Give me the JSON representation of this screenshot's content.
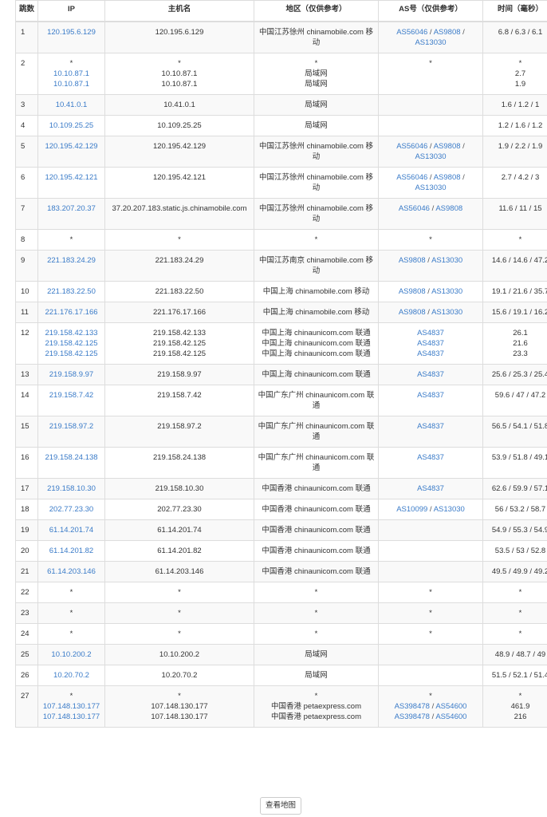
{
  "headers": {
    "hop": "跳数",
    "ip": "IP",
    "host": "主机名",
    "region": "地区（仅供参考）",
    "as": "AS号（仅供参考）",
    "time": "时间（毫秒）"
  },
  "colors": {
    "link": "#3a7bc8",
    "border": "#dddddd",
    "stripe": "#f9f9f9"
  },
  "rows": [
    {
      "hop": "1",
      "ip": [
        "120.195.6.129"
      ],
      "host": [
        "120.195.6.129"
      ],
      "region": [
        "中国江苏徐州 chinamobile.com 移动"
      ],
      "as": [
        [
          "AS56046",
          "AS9808",
          "AS13030"
        ]
      ],
      "time": [
        "6.8 / 6.3 / 6.1"
      ]
    },
    {
      "hop": "2",
      "ip": [
        "*",
        "10.10.87.1",
        "10.10.87.1"
      ],
      "host": [
        "*",
        "10.10.87.1",
        "10.10.87.1"
      ],
      "region": [
        "*",
        "局域网",
        "局域网"
      ],
      "as": [
        [
          "*"
        ]
      ],
      "time": [
        "*",
        "2.7",
        "1.9"
      ]
    },
    {
      "hop": "3",
      "ip": [
        "10.41.0.1"
      ],
      "host": [
        "10.41.0.1"
      ],
      "region": [
        "局域网"
      ],
      "as": [],
      "time": [
        "1.6 / 1.2 / 1"
      ]
    },
    {
      "hop": "4",
      "ip": [
        "10.109.25.25"
      ],
      "host": [
        "10.109.25.25"
      ],
      "region": [
        "局域网"
      ],
      "as": [],
      "time": [
        "1.2 / 1.6 / 1.2"
      ]
    },
    {
      "hop": "5",
      "ip": [
        "120.195.42.129"
      ],
      "host": [
        "120.195.42.129"
      ],
      "region": [
        "中国江苏徐州 chinamobile.com 移动"
      ],
      "as": [
        [
          "AS56046",
          "AS9808",
          "AS13030"
        ]
      ],
      "time": [
        "1.9 / 2.2 / 1.9"
      ]
    },
    {
      "hop": "6",
      "ip": [
        "120.195.42.121"
      ],
      "host": [
        "120.195.42.121"
      ],
      "region": [
        "中国江苏徐州 chinamobile.com 移动"
      ],
      "as": [
        [
          "AS56046",
          "AS9808",
          "AS13030"
        ]
      ],
      "time": [
        "2.7 / 4.2 / 3"
      ]
    },
    {
      "hop": "7",
      "ip": [
        "183.207.20.37"
      ],
      "host": [
        "37.20.207.183.static.js.chinamobile.com"
      ],
      "region": [
        "中国江苏徐州 chinamobile.com 移动"
      ],
      "as": [
        [
          "AS56046",
          "AS9808"
        ]
      ],
      "time": [
        "11.6 / 11 / 15"
      ]
    },
    {
      "hop": "8",
      "ip": [
        "*"
      ],
      "host": [
        "*"
      ],
      "region": [
        "*"
      ],
      "as": [
        [
          "*"
        ]
      ],
      "time": [
        "*"
      ]
    },
    {
      "hop": "9",
      "ip": [
        "221.183.24.29"
      ],
      "host": [
        "221.183.24.29"
      ],
      "region": [
        "中国江苏南京 chinamobile.com 移动"
      ],
      "as": [
        [
          "AS9808",
          "AS13030"
        ]
      ],
      "time": [
        "14.6 / 14.6 / 47.2"
      ]
    },
    {
      "hop": "10",
      "ip": [
        "221.183.22.50"
      ],
      "host": [
        "221.183.22.50"
      ],
      "region": [
        "中国上海 chinamobile.com 移动"
      ],
      "as": [
        [
          "AS9808",
          "AS13030"
        ]
      ],
      "time": [
        "19.1 / 21.6 / 35.7"
      ]
    },
    {
      "hop": "11",
      "ip": [
        "221.176.17.166"
      ],
      "host": [
        "221.176.17.166"
      ],
      "region": [
        "中国上海 chinamobile.com 移动"
      ],
      "as": [
        [
          "AS9808",
          "AS13030"
        ]
      ],
      "time": [
        "15.6 / 19.1 / 16.2"
      ]
    },
    {
      "hop": "12",
      "ip": [
        "219.158.42.133",
        "219.158.42.125",
        "219.158.42.125"
      ],
      "host": [
        "219.158.42.133",
        "219.158.42.125",
        "219.158.42.125"
      ],
      "region": [
        "中国上海 chinaunicom.com 联通",
        "中国上海 chinaunicom.com 联通",
        "中国上海 chinaunicom.com 联通"
      ],
      "as": [
        [
          "AS4837"
        ],
        [
          "AS4837"
        ],
        [
          "AS4837"
        ]
      ],
      "time": [
        "26.1",
        "21.6",
        "23.3"
      ]
    },
    {
      "hop": "13",
      "ip": [
        "219.158.9.97"
      ],
      "host": [
        "219.158.9.97"
      ],
      "region": [
        "中国上海 chinaunicom.com 联通"
      ],
      "as": [
        [
          "AS4837"
        ]
      ],
      "time": [
        "25.6 / 25.3 / 25.4"
      ]
    },
    {
      "hop": "14",
      "ip": [
        "219.158.7.42"
      ],
      "host": [
        "219.158.7.42"
      ],
      "region": [
        "中国广东广州 chinaunicom.com 联通"
      ],
      "as": [
        [
          "AS4837"
        ]
      ],
      "time": [
        "59.6 / 47 / 47.2"
      ]
    },
    {
      "hop": "15",
      "ip": [
        "219.158.97.2"
      ],
      "host": [
        "219.158.97.2"
      ],
      "region": [
        "中国广东广州 chinaunicom.com 联通"
      ],
      "as": [
        [
          "AS4837"
        ]
      ],
      "time": [
        "56.5 / 54.1 / 51.8"
      ]
    },
    {
      "hop": "16",
      "ip": [
        "219.158.24.138"
      ],
      "host": [
        "219.158.24.138"
      ],
      "region": [
        "中国广东广州 chinaunicom.com 联通"
      ],
      "as": [
        [
          "AS4837"
        ]
      ],
      "time": [
        "53.9 / 51.8 / 49.1"
      ]
    },
    {
      "hop": "17",
      "ip": [
        "219.158.10.30"
      ],
      "host": [
        "219.158.10.30"
      ],
      "region": [
        "中国香港 chinaunicom.com 联通"
      ],
      "as": [
        [
          "AS4837"
        ]
      ],
      "time": [
        "62.6 / 59.9 / 57.1"
      ]
    },
    {
      "hop": "18",
      "ip": [
        "202.77.23.30"
      ],
      "host": [
        "202.77.23.30"
      ],
      "region": [
        "中国香港 chinaunicom.com 联通"
      ],
      "as": [
        [
          "AS10099",
          "AS13030"
        ]
      ],
      "time": [
        "56 / 53.2 / 58.7"
      ]
    },
    {
      "hop": "19",
      "ip": [
        "61.14.201.74"
      ],
      "host": [
        "61.14.201.74"
      ],
      "region": [
        "中国香港 chinaunicom.com 联通"
      ],
      "as": [],
      "time": [
        "54.9 / 55.3 / 54.9"
      ]
    },
    {
      "hop": "20",
      "ip": [
        "61.14.201.82"
      ],
      "host": [
        "61.14.201.82"
      ],
      "region": [
        "中国香港 chinaunicom.com 联通"
      ],
      "as": [],
      "time": [
        "53.5 / 53 / 52.8"
      ]
    },
    {
      "hop": "21",
      "ip": [
        "61.14.203.146"
      ],
      "host": [
        "61.14.203.146"
      ],
      "region": [
        "中国香港 chinaunicom.com 联通"
      ],
      "as": [],
      "time": [
        "49.5 / 49.9 / 49.2"
      ]
    },
    {
      "hop": "22",
      "ip": [
        "*"
      ],
      "host": [
        "*"
      ],
      "region": [
        "*"
      ],
      "as": [
        [
          "*"
        ]
      ],
      "time": [
        "*"
      ]
    },
    {
      "hop": "23",
      "ip": [
        "*"
      ],
      "host": [
        "*"
      ],
      "region": [
        "*"
      ],
      "as": [
        [
          "*"
        ]
      ],
      "time": [
        "*"
      ]
    },
    {
      "hop": "24",
      "ip": [
        "*"
      ],
      "host": [
        "*"
      ],
      "region": [
        "*"
      ],
      "as": [
        [
          "*"
        ]
      ],
      "time": [
        "*"
      ]
    },
    {
      "hop": "25",
      "ip": [
        "10.10.200.2"
      ],
      "host": [
        "10.10.200.2"
      ],
      "region": [
        "局域网"
      ],
      "as": [],
      "time": [
        "48.9 / 48.7 / 49"
      ]
    },
    {
      "hop": "26",
      "ip": [
        "10.20.70.2"
      ],
      "host": [
        "10.20.70.2"
      ],
      "region": [
        "局域网"
      ],
      "as": [],
      "time": [
        "51.5 / 52.1 / 51.4"
      ]
    },
    {
      "hop": "27",
      "ip": [
        "*",
        "107.148.130.177",
        "107.148.130.177"
      ],
      "host": [
        "*",
        "107.148.130.177",
        "107.148.130.177"
      ],
      "region": [
        "*",
        "中国香港 petaexpress.com",
        "中国香港 petaexpress.com"
      ],
      "as": [
        [
          "*"
        ],
        [
          "AS398478",
          "AS54600"
        ],
        [
          "AS398478",
          "AS54600"
        ]
      ],
      "time": [
        "*",
        "461.9",
        "216"
      ]
    }
  ],
  "map_button": "查看地图"
}
